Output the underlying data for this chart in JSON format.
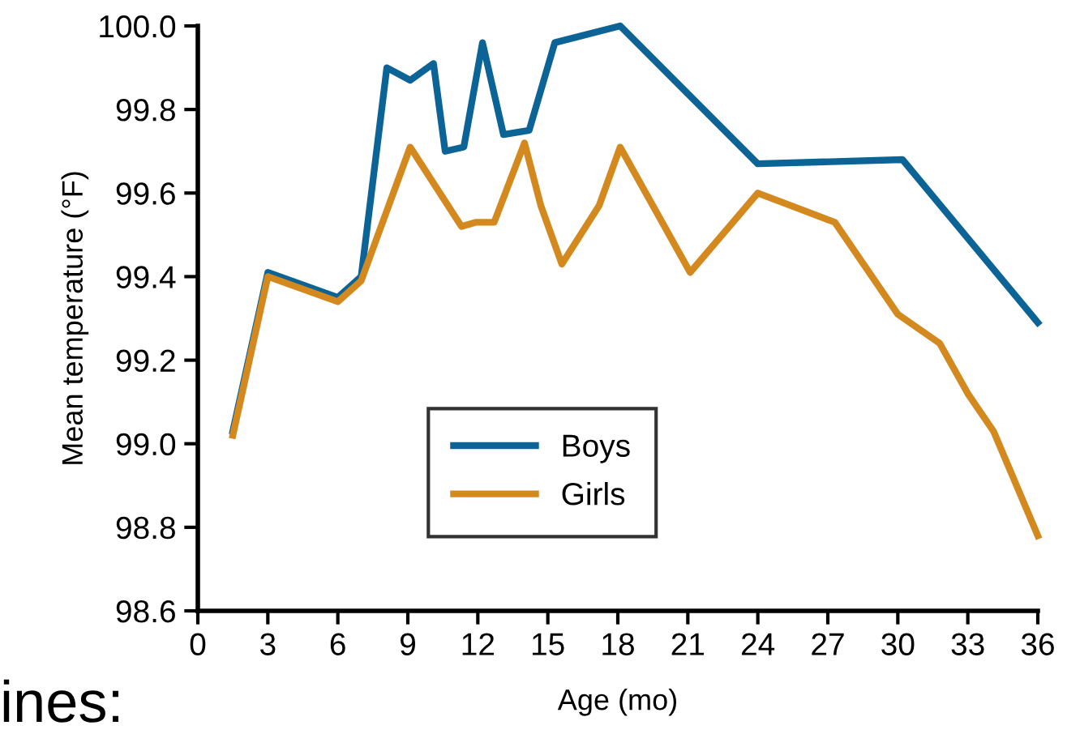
{
  "chart_data": {
    "type": "line",
    "xlabel": "Age (mo)",
    "ylabel": "Mean temperature (°F)",
    "xlim": [
      0,
      36
    ],
    "xticks": [
      0,
      3,
      6,
      9,
      12,
      15,
      18,
      21,
      24,
      27,
      30,
      33,
      36
    ],
    "ylim": [
      98.6,
      100.0
    ],
    "yticks": [
      {
        "value": 98.6,
        "label": "98.6"
      },
      {
        "value": 98.8,
        "label": "98.8"
      },
      {
        "value": 99.0,
        "label": "99.0"
      },
      {
        "value": 99.2,
        "label": "99.2"
      },
      {
        "value": 99.4,
        "label": "99.4"
      },
      {
        "value": 99.6,
        "label": "99.6"
      },
      {
        "value": 99.8,
        "label": "99.8"
      },
      {
        "value": 100.0,
        "label": "100.0"
      }
    ],
    "grid": false,
    "legend": "bottom center",
    "marker": "none",
    "line_style": "solid",
    "series": [
      {
        "name": "Boys",
        "color": "#0b6396",
        "x": [
          1.5,
          3,
          6,
          7,
          8.1,
          9.1,
          10.1,
          10.6,
          11.4,
          12.2,
          13.1,
          14.2,
          15.3,
          18.1,
          24,
          30.2,
          36
        ],
        "values": [
          99.03,
          99.41,
          99.35,
          99.4,
          99.9,
          99.87,
          99.91,
          99.7,
          99.71,
          99.96,
          99.74,
          99.75,
          99.96,
          100.0,
          99.67,
          99.68,
          99.29
        ]
      },
      {
        "name": "Girls",
        "color": "#d4891e",
        "x": [
          1.5,
          3,
          6,
          7,
          9.1,
          11.3,
          11.9,
          12.7,
          14,
          14.7,
          15.6,
          17.2,
          18.1,
          21.1,
          24,
          27.3,
          30,
          31.8,
          33,
          34.1,
          36
        ],
        "values": [
          99.02,
          99.4,
          99.34,
          99.39,
          99.71,
          99.52,
          99.53,
          99.53,
          99.72,
          99.57,
          99.43,
          99.57,
          99.71,
          99.41,
          99.6,
          99.53,
          99.31,
          99.24,
          99.12,
          99.03,
          98.78
        ]
      }
    ],
    "annotations": [
      "ines:"
    ]
  }
}
